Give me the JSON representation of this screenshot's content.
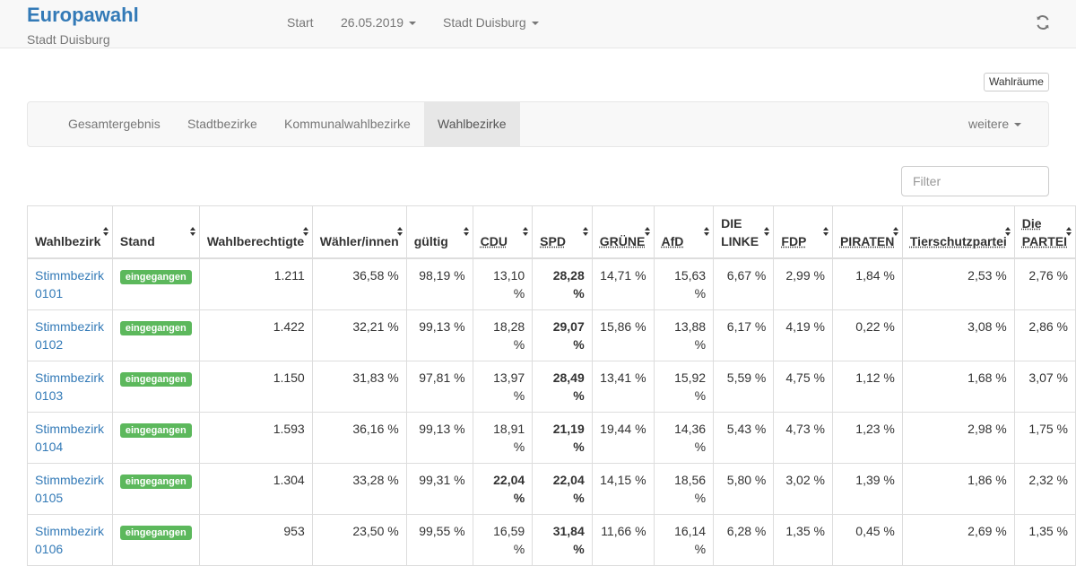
{
  "app": {
    "title": "Europawahl",
    "subtitle": "Stadt Duisburg"
  },
  "topnav": {
    "start": "Start",
    "date": "26.05.2019",
    "region": "Stadt Duisburg"
  },
  "icons": {
    "refresh": "refresh-icon",
    "sort": "sort-both-icon"
  },
  "colors": {
    "brand": "#337ab7",
    "badge": "#5cb85c"
  },
  "wahlraeume_label": "Wahlräume",
  "tabs": [
    "Gesamtergebnis",
    "Stadtbezirke",
    "Kommunalwahlbezirke",
    "Wahlbezirke",
    "weitere"
  ],
  "active_tab": "Wahlbezirke",
  "filter": {
    "placeholder": "Filter"
  },
  "columns": [
    "Wahlbezirk",
    "Stand",
    "Wahlberechtigte",
    "Wähler/innen",
    "gültig",
    "CDU",
    "SPD",
    "GRÜNE",
    "AfD",
    "DIE LINKE",
    "FDP",
    "PIRATEN",
    "Tierschutzpartei",
    "Die PARTEI"
  ],
  "rows": [
    {
      "bezirk": "Stimmbezirk 0101",
      "stand": "eingegangen",
      "berechtigte": "1.211",
      "waehler": "36,58 %",
      "gueltig": "98,19 %",
      "cdu": "13,10 %",
      "spd": "28,28 %",
      "gruene": "14,71 %",
      "afd": "15,63 %",
      "linke": "6,67 %",
      "fdp": "2,99 %",
      "piraten": "1,84 %",
      "tierschutz": "2,53 %",
      "partei": "2,76 %"
    },
    {
      "bezirk": "Stimmbezirk 0102",
      "stand": "eingegangen",
      "berechtigte": "1.422",
      "waehler": "32,21 %",
      "gueltig": "99,13 %",
      "cdu": "18,28 %",
      "spd": "29,07 %",
      "gruene": "15,86 %",
      "afd": "13,88 %",
      "linke": "6,17 %",
      "fdp": "4,19 %",
      "piraten": "0,22 %",
      "tierschutz": "3,08 %",
      "partei": "2,86 %"
    },
    {
      "bezirk": "Stimmbezirk 0103",
      "stand": "eingegangen",
      "berechtigte": "1.150",
      "waehler": "31,83 %",
      "gueltig": "97,81 %",
      "cdu": "13,97 %",
      "spd": "28,49 %",
      "gruene": "13,41 %",
      "afd": "15,92 %",
      "linke": "5,59 %",
      "fdp": "4,75 %",
      "piraten": "1,12 %",
      "tierschutz": "1,68 %",
      "partei": "3,07 %"
    },
    {
      "bezirk": "Stimmbezirk 0104",
      "stand": "eingegangen",
      "berechtigte": "1.593",
      "waehler": "36,16 %",
      "gueltig": "99,13 %",
      "cdu": "18,91 %",
      "spd": "21,19 %",
      "gruene": "19,44 %",
      "afd": "14,36 %",
      "linke": "5,43 %",
      "fdp": "4,73 %",
      "piraten": "1,23 %",
      "tierschutz": "2,98 %",
      "partei": "1,75 %"
    },
    {
      "bezirk": "Stimmbezirk 0105",
      "stand": "eingegangen",
      "berechtigte": "1.304",
      "waehler": "33,28 %",
      "gueltig": "99,31 %",
      "cdu": "22,04 %",
      "spd": "22,04 %",
      "gruene": "14,15 %",
      "afd": "18,56 %",
      "linke": "5,80 %",
      "fdp": "3,02 %",
      "piraten": "1,39 %",
      "tierschutz": "1,86 %",
      "partei": "2,32 %"
    },
    {
      "bezirk": "Stimmbezirk 0106",
      "stand": "eingegangen",
      "berechtigte": "953",
      "waehler": "23,50 %",
      "gueltig": "99,55 %",
      "cdu": "16,59 %",
      "spd": "31,84 %",
      "gruene": "11,66 %",
      "afd": "16,14 %",
      "linke": "6,28 %",
      "fdp": "1,35 %",
      "piraten": "0,45 %",
      "tierschutz": "2,69 %",
      "partei": "1,35 %"
    }
  ],
  "bold_cells": [
    [
      "spd"
    ],
    [
      "spd"
    ],
    [
      "spd"
    ],
    [
      "spd"
    ],
    [
      "cdu",
      "spd"
    ],
    [
      "spd"
    ]
  ]
}
